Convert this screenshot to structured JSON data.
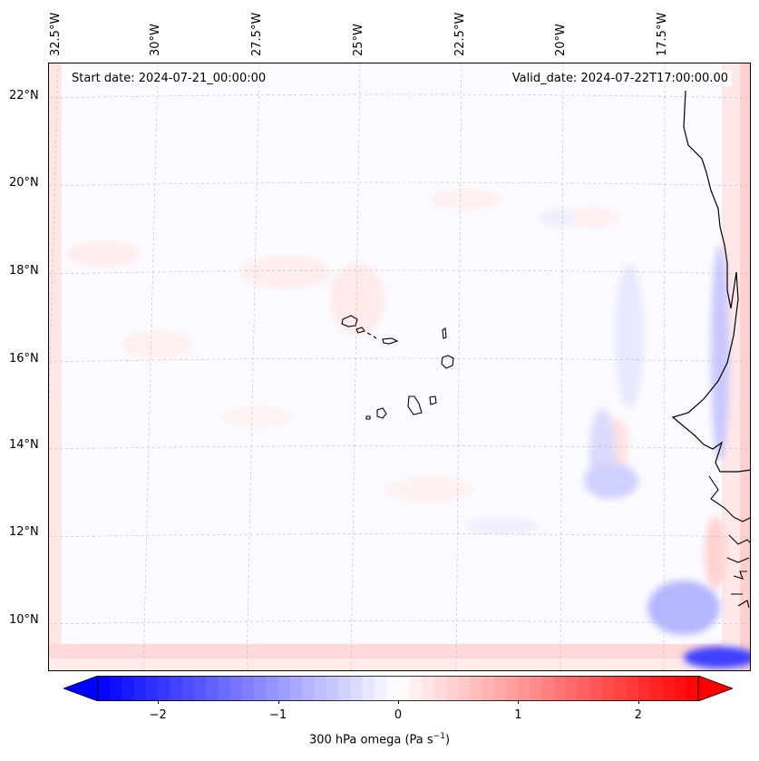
{
  "map": {
    "start_date": "Start date: 2024-07-21_00:00:00",
    "valid_date": "Valid_date: 2024-07-22T17:00:00.00",
    "lon_labels": [
      "32.5°W",
      "30°W",
      "27.5°W",
      "25°W",
      "22.5°W",
      "20°W",
      "17.5°W"
    ],
    "lat_labels": [
      "22°N",
      "20°N",
      "18°N",
      "16°N",
      "14°N",
      "12°N",
      "10°N"
    ]
  },
  "colorbar": {
    "label_prefix": "300 hPa omega (Pa s",
    "label_exp": "−1",
    "label_suffix": ")",
    "ticks": [
      "−2",
      "−1",
      "0",
      "1",
      "2"
    ],
    "tick_values": [
      -2,
      -1,
      0,
      1,
      2
    ],
    "range": [
      -2.5,
      2.5
    ],
    "colors": {
      "negative": "#0000ff",
      "zero": "#ffffff",
      "positive": "#ff0000"
    }
  }
}
